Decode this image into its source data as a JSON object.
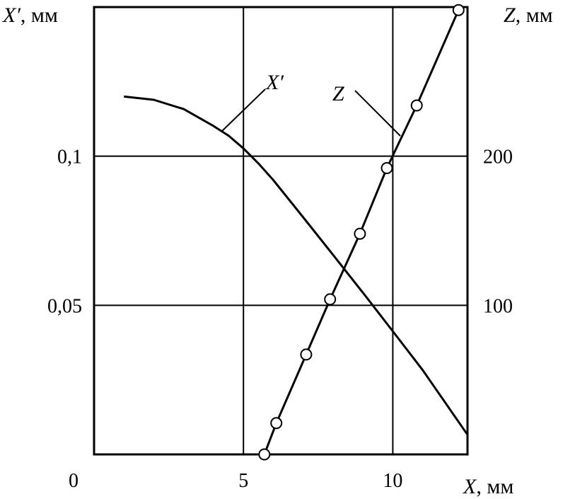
{
  "chart_data": {
    "type": "line",
    "xlabel": "X, мм",
    "ylabel_left": "X′, мм",
    "ylabel_right": "Z, мм",
    "xlim": [
      0,
      12.5
    ],
    "ylim_left": [
      0,
      0.15
    ],
    "ylim_right": [
      0,
      300
    ],
    "grid": true,
    "x_ticks": [
      {
        "value": 0,
        "label": "0"
      },
      {
        "value": 5,
        "label": "5"
      },
      {
        "value": 10,
        "label": "10"
      }
    ],
    "y_left_ticks": [
      {
        "value": 0.05,
        "label": "0,05"
      },
      {
        "value": 0.1,
        "label": "0,1"
      }
    ],
    "y_right_ticks": [
      {
        "value": 100,
        "label": "100"
      },
      {
        "value": 200,
        "label": "200"
      }
    ],
    "x_axis_title": {
      "symbol": "X",
      "unit": ", мм"
    },
    "y_left_axis_title": {
      "symbol": "X′",
      "unit": ", мм"
    },
    "y_right_axis_title": {
      "symbol": "Z",
      "unit": ", мм"
    },
    "series": [
      {
        "name": "X′",
        "axis": "left",
        "markers": false,
        "x": [
          1.0,
          2.0,
          3.0,
          4.0,
          4.5,
          5.0,
          5.5,
          6.0,
          7.0,
          8.0,
          9.0,
          10.0,
          11.0,
          12.5
        ],
        "y": [
          0.12,
          0.1189,
          0.1158,
          0.1101,
          0.1069,
          0.1026,
          0.0976,
          0.092,
          0.0795,
          0.0669,
          0.0542,
          0.0413,
          0.0283,
          0.0066
        ]
      },
      {
        "name": "Z",
        "axis": "right",
        "markers": true,
        "x": [
          5.7,
          6.1,
          7.1,
          7.9,
          8.9,
          9.8,
          10.8,
          12.2
        ],
        "y": [
          0,
          21,
          67,
          104,
          148,
          192,
          234,
          298
        ]
      }
    ]
  }
}
